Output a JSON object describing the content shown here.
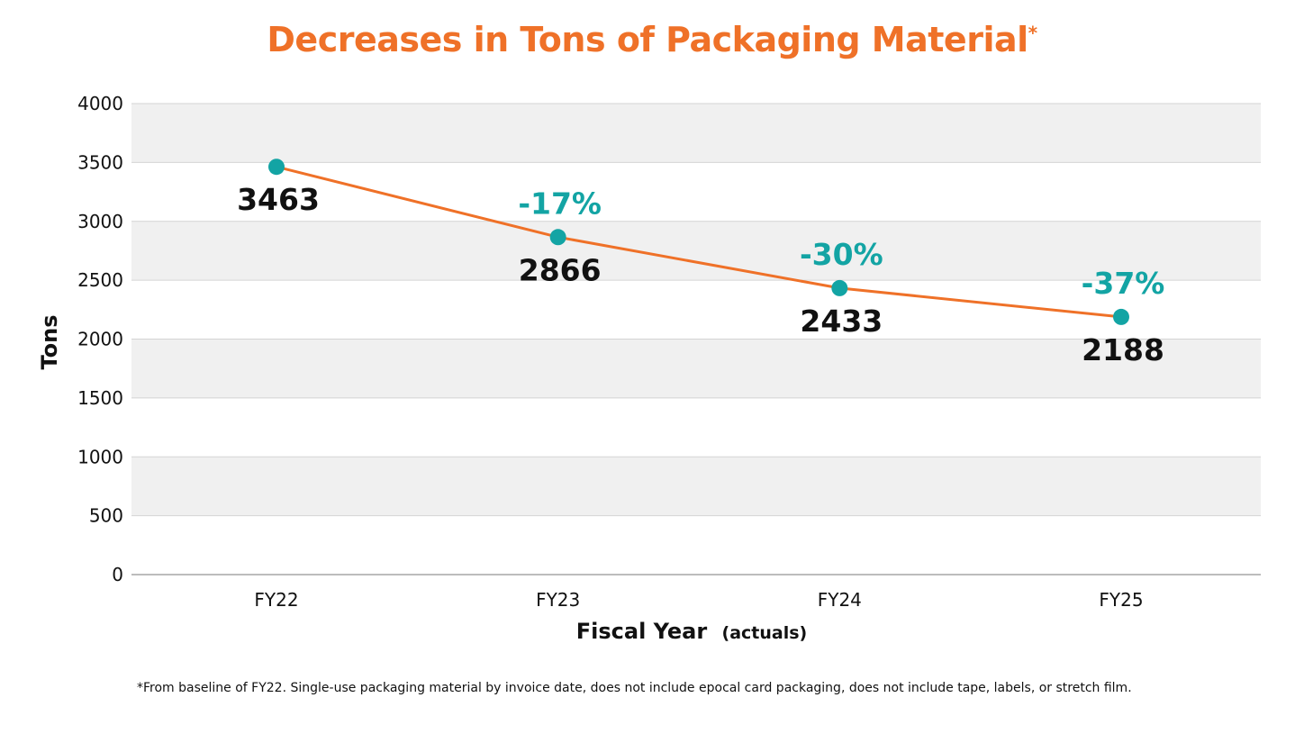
{
  "chart_data": {
    "type": "line",
    "title": "Decreases in Tons of Packaging Material",
    "title_marker": "*",
    "categories": [
      "FY22",
      "FY23",
      "FY24",
      "FY25"
    ],
    "series": [
      {
        "name": "Tons",
        "values": [
          3463,
          2866,
          2433,
          2188
        ]
      }
    ],
    "value_labels": [
      "3463",
      "2866",
      "2433",
      "2188"
    ],
    "change_labels": [
      "",
      "-17%",
      "-30%",
      "-37%"
    ],
    "ylim": [
      0,
      4000
    ],
    "yticks": [
      0,
      500,
      1000,
      1500,
      2000,
      2500,
      3000,
      3500,
      4000
    ],
    "ylabel": "Tons",
    "xlabel": "Fiscal Year",
    "xlabel_suffix": "(actuals)",
    "grid": true
  },
  "footnote": "*From baseline of FY22. Single-use packaging material by invoice date, does not include epocal card packaging, does not include tape, labels, or stretch film.",
  "colors": {
    "title": "#ef7128",
    "line": "#ef7128",
    "marker": "#13a4a4",
    "change_label": "#13a4a4",
    "value_label": "#111111",
    "band": "#f0f0f0",
    "grid": "#d4d4d4",
    "axis": "#a6a6a6"
  }
}
